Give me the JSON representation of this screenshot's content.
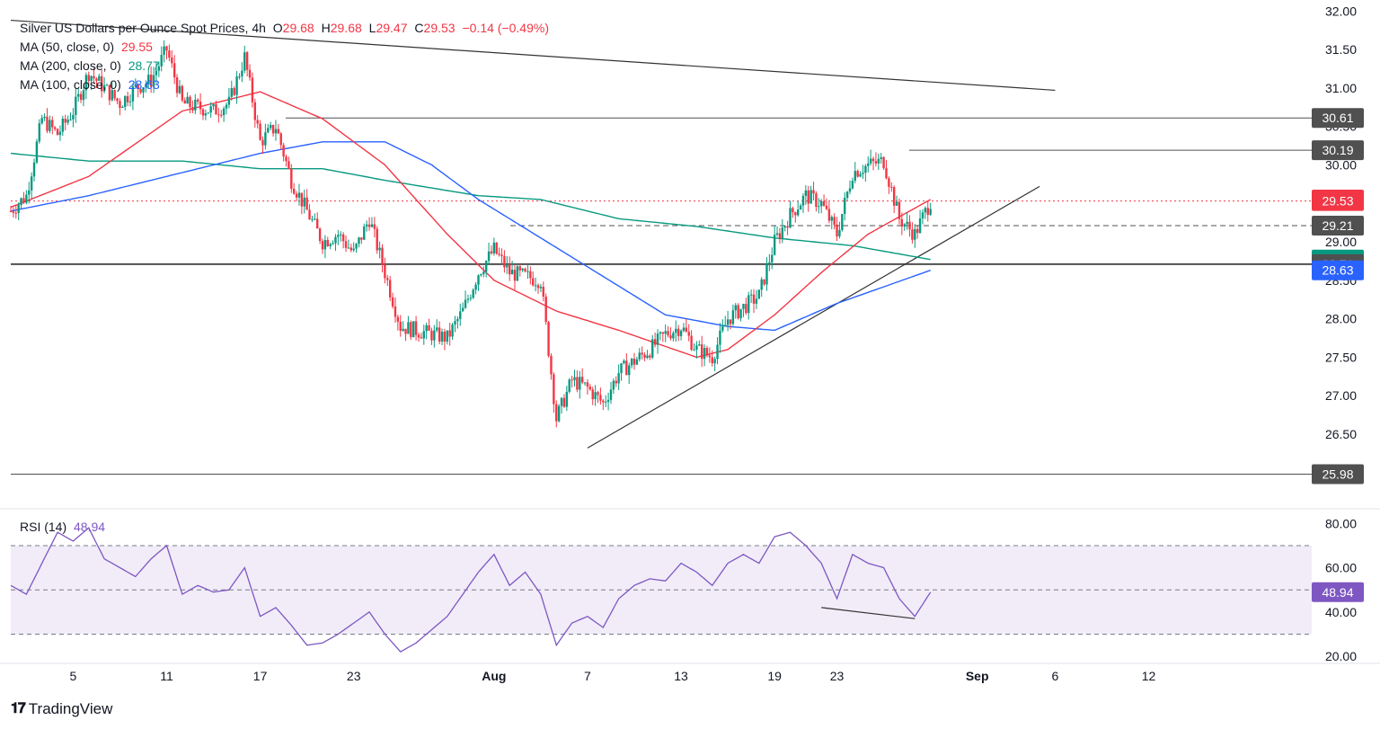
{
  "header": {
    "symbol": "Silver US Dollars per Ounce Spot Prices, 4h",
    "open_label": "O",
    "open": "29.68",
    "high_label": "H",
    "high": "29.68",
    "low_label": "L",
    "low": "29.47",
    "close_label": "C",
    "close": "29.53",
    "change": "−0.14 (−0.49%)"
  },
  "ma_legend": [
    {
      "label": "MA (50, close, 0)",
      "value": "29.55",
      "color": "#f23645"
    },
    {
      "label": "MA (200, close, 0)",
      "value": "28.77",
      "color": "#089981"
    },
    {
      "label": "MA (100, close, 0)",
      "value": "28.63",
      "color": "#2962ff"
    }
  ],
  "rsi_legend": {
    "label": "RSI (14)",
    "value": "48.94",
    "color": "#7e57c2"
  },
  "branding": {
    "name": "TradingView"
  },
  "colors": {
    "up": "#089981",
    "down": "#f23645",
    "ma50": "#f23645",
    "ma100": "#2962ff",
    "ma200": "#089981",
    "rsi": "#7e57c2",
    "rsi_band": "#ede7f6"
  },
  "chart_data": [
    {
      "type": "candlestick",
      "title": "Silver US Dollars per Ounce Spot Prices, 4h",
      "price_axis": {
        "ticks": [
          "32.00",
          "31.50",
          "31.00",
          "30.50",
          "30.00",
          "29.50",
          "29.00",
          "28.50",
          "28.00",
          "27.50",
          "27.00",
          "26.50"
        ],
        "ylim": [
          25.6,
          32.05
        ]
      },
      "time_axis": {
        "ticks": [
          "5",
          "11",
          "17",
          "23",
          "Aug",
          "7",
          "13",
          "19",
          "23",
          "Sep",
          "6",
          "12"
        ]
      },
      "price_labels": [
        {
          "value": "30.61",
          "color": "#505050"
        },
        {
          "value": "30.19",
          "color": "#505050"
        },
        {
          "value": "29.55",
          "color": "#f23645"
        },
        {
          "value": "29.53",
          "color": "#f23645"
        },
        {
          "value": "29.21",
          "color": "#505050"
        },
        {
          "value": "28.77",
          "color": "#089981"
        },
        {
          "value": "28.71",
          "color": "#505050"
        },
        {
          "value": "28.63",
          "color": "#2962ff"
        },
        {
          "value": "25.98",
          "color": "#505050"
        }
      ],
      "horizontal_levels": [
        30.61,
        30.19,
        29.21,
        28.71,
        25.98
      ],
      "last_price": 29.53,
      "trendlines": [
        {
          "name": "descending-resistance",
          "from": [
            "Jul 1",
            31.88
          ],
          "to": [
            "Sep 6",
            30.97
          ]
        },
        {
          "name": "ascending-support",
          "from": [
            "Aug 7",
            26.32
          ],
          "to": [
            "Sep 5",
            29.72
          ]
        }
      ],
      "price_path": [
        [
          "Jul 1",
          29.4
        ],
        [
          "Jul 2",
          29.6
        ],
        [
          "Jul 3",
          30.6
        ],
        [
          "Jul 4",
          30.4
        ],
        [
          "Jul 5",
          30.7
        ],
        [
          "Jul 6",
          31.2
        ],
        [
          "Jul 8",
          30.8
        ],
        [
          "Jul 9",
          31.0
        ],
        [
          "Jul 10",
          31.1
        ],
        [
          "Jul 11",
          31.5
        ],
        [
          "Jul 12",
          30.8
        ],
        [
          "Jul 14",
          30.7
        ],
        [
          "Jul 15",
          30.8
        ],
        [
          "Jul 16",
          31.4
        ],
        [
          "Jul 17",
          30.3
        ],
        [
          "Jul 18",
          30.5
        ],
        [
          "Jul 19",
          29.8
        ],
        [
          "Jul 21",
          29.0
        ],
        [
          "Jul 22",
          29.1
        ],
        [
          "Jul 23",
          28.85
        ],
        [
          "Jul 24",
          29.3
        ],
        [
          "Jul 25",
          28.6
        ],
        [
          "Jul 26",
          27.9
        ],
        [
          "Jul 28",
          27.8
        ],
        [
          "Jul 29",
          27.75
        ],
        [
          "Jul 30",
          28.1
        ],
        [
          "Jul 31",
          28.6
        ],
        [
          "Aug 1",
          28.9
        ],
        [
          "Aug 2",
          28.6
        ],
        [
          "Aug 4",
          28.5
        ],
        [
          "Aug 5",
          26.7
        ],
        [
          "Aug 6",
          27.2
        ],
        [
          "Aug 7",
          27.1
        ],
        [
          "Aug 8",
          26.9
        ],
        [
          "Aug 9",
          27.3
        ],
        [
          "Aug 11",
          27.6
        ],
        [
          "Aug 12",
          27.8
        ],
        [
          "Aug 13",
          27.9
        ],
        [
          "Aug 14",
          27.6
        ],
        [
          "Aug 15",
          27.5
        ],
        [
          "Aug 16",
          28.0
        ],
        [
          "Aug 18",
          28.3
        ],
        [
          "Aug 19",
          29.0
        ],
        [
          "Aug 20",
          29.35
        ],
        [
          "Aug 21",
          29.6
        ],
        [
          "Aug 22",
          29.5
        ],
        [
          "Aug 23",
          29.1
        ],
        [
          "Aug 24",
          29.9
        ],
        [
          "Aug 25",
          30.0
        ],
        [
          "Aug 26",
          30.05
        ],
        [
          "Aug 27",
          29.3
        ],
        [
          "Aug 28",
          29.1
        ],
        [
          "Aug 29",
          29.53
        ]
      ],
      "ma50_path": [
        [
          "Jul 1",
          29.45
        ],
        [
          "Jul 6",
          29.85
        ],
        [
          "Jul 12",
          30.7
        ],
        [
          "Jul 17",
          30.95
        ],
        [
          "Jul 21",
          30.6
        ],
        [
          "Jul 25",
          30.0
        ],
        [
          "Jul 29",
          29.1
        ],
        [
          "Aug 1",
          28.5
        ],
        [
          "Aug 5",
          28.1
        ],
        [
          "Aug 9",
          27.85
        ],
        [
          "Aug 14",
          27.5
        ],
        [
          "Aug 16",
          27.6
        ],
        [
          "Aug 19",
          28.05
        ],
        [
          "Aug 22",
          28.6
        ],
        [
          "Aug 25",
          29.1
        ],
        [
          "Aug 29",
          29.55
        ]
      ],
      "ma100_path": [
        [
          "Jul 1",
          29.4
        ],
        [
          "Jul 6",
          29.6
        ],
        [
          "Jul 12",
          29.9
        ],
        [
          "Jul 17",
          30.15
        ],
        [
          "Jul 21",
          30.3
        ],
        [
          "Jul 25",
          30.3
        ],
        [
          "Jul 28",
          30.0
        ],
        [
          "Jul 31",
          29.55
        ],
        [
          "Aug 4",
          29.05
        ],
        [
          "Aug 8",
          28.55
        ],
        [
          "Aug 12",
          28.05
        ],
        [
          "Aug 16",
          27.9
        ],
        [
          "Aug 19",
          27.85
        ],
        [
          "Aug 23",
          28.2
        ],
        [
          "Aug 29",
          28.63
        ]
      ],
      "ma200_path": [
        [
          "Jul 1",
          30.15
        ],
        [
          "Jul 6",
          30.05
        ],
        [
          "Jul 12",
          30.05
        ],
        [
          "Jul 17",
          29.95
        ],
        [
          "Jul 21",
          29.95
        ],
        [
          "Jul 25",
          29.8
        ],
        [
          "Jul 31",
          29.6
        ],
        [
          "Aug 4",
          29.55
        ],
        [
          "Aug 9",
          29.3
        ],
        [
          "Aug 14",
          29.2
        ],
        [
          "Aug 19",
          29.05
        ],
        [
          "Aug 24",
          28.95
        ],
        [
          "Aug 29",
          28.77
        ]
      ]
    },
    {
      "type": "line",
      "title": "RSI (14)",
      "y_axis": {
        "ticks": [
          "80.00",
          "60.00",
          "40.00",
          "20.00"
        ],
        "ylim": [
          18,
          85
        ]
      },
      "bands": [
        70,
        50,
        30
      ],
      "last_value": 48.94,
      "divergence_line": {
        "from": [
          "Aug 22",
          42
        ],
        "to": [
          "Aug 28",
          37
        ]
      },
      "rsi_path": [
        [
          "Jul 1",
          52
        ],
        [
          "Jul 2",
          48
        ],
        [
          "Jul 3",
          62
        ],
        [
          "Jul 4",
          76
        ],
        [
          "Jul 5",
          72
        ],
        [
          "Jul 6",
          78
        ],
        [
          "Jul 7",
          64
        ],
        [
          "Jul 8",
          60
        ],
        [
          "Jul 9",
          56
        ],
        [
          "Jul 10",
          64
        ],
        [
          "Jul 11",
          70
        ],
        [
          "Jul 12",
          48
        ],
        [
          "Jul 13",
          52
        ],
        [
          "Jul 14",
          49
        ],
        [
          "Jul 15",
          50
        ],
        [
          "Jul 16",
          60
        ],
        [
          "Jul 17",
          38
        ],
        [
          "Jul 18",
          42
        ],
        [
          "Jul 19",
          34
        ],
        [
          "Jul 20",
          25
        ],
        [
          "Jul 21",
          26
        ],
        [
          "Jul 22",
          30
        ],
        [
          "Jul 23",
          35
        ],
        [
          "Jul 24",
          40
        ],
        [
          "Jul 25",
          30
        ],
        [
          "Jul 26",
          22
        ],
        [
          "Jul 27",
          26
        ],
        [
          "Jul 28",
          32
        ],
        [
          "Jul 29",
          38
        ],
        [
          "Jul 30",
          48
        ],
        [
          "Jul 31",
          58
        ],
        [
          "Aug 1",
          66
        ],
        [
          "Aug 2",
          52
        ],
        [
          "Aug 3",
          58
        ],
        [
          "Aug 4",
          48
        ],
        [
          "Aug 5",
          25
        ],
        [
          "Aug 6",
          35
        ],
        [
          "Aug 7",
          38
        ],
        [
          "Aug 8",
          33
        ],
        [
          "Aug 9",
          46
        ],
        [
          "Aug 10",
          52
        ],
        [
          "Aug 11",
          55
        ],
        [
          "Aug 12",
          54
        ],
        [
          "Aug 13",
          62
        ],
        [
          "Aug 14",
          58
        ],
        [
          "Aug 15",
          52
        ],
        [
          "Aug 16",
          62
        ],
        [
          "Aug 17",
          66
        ],
        [
          "Aug 18",
          62
        ],
        [
          "Aug 19",
          74
        ],
        [
          "Aug 20",
          76
        ],
        [
          "Aug 21",
          70
        ],
        [
          "Aug 22",
          62
        ],
        [
          "Aug 23",
          46
        ],
        [
          "Aug 24",
          66
        ],
        [
          "Aug 25",
          62
        ],
        [
          "Aug 26",
          60
        ],
        [
          "Aug 27",
          46
        ],
        [
          "Aug 28",
          38
        ],
        [
          "Aug 29",
          48.94
        ]
      ]
    }
  ]
}
